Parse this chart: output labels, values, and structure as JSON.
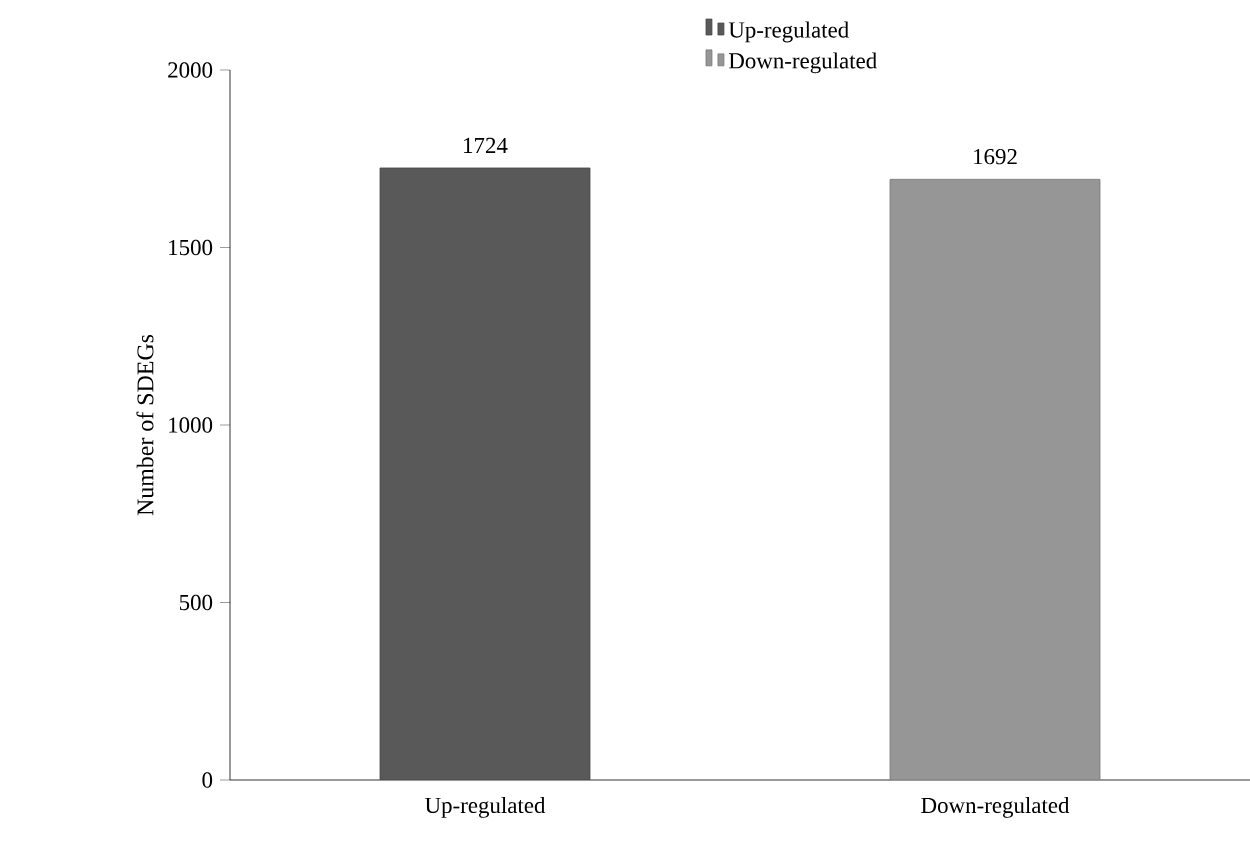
{
  "chart_data": {
    "type": "bar",
    "ylabel": "Number of SDEGs",
    "categories": [
      "Up-regulated",
      "Down-regulated"
    ],
    "series": [
      {
        "name": "Up-regulated",
        "color": "#595959",
        "values": [
          1724,
          null
        ]
      },
      {
        "name": "Down-regulated",
        "color": "#969696",
        "values": [
          null,
          1692
        ]
      }
    ],
    "ylim": [
      0,
      2000
    ],
    "yticks": [
      0,
      500,
      1000,
      1500,
      2000
    ],
    "data_labels": true,
    "grid": false,
    "legend": "top"
  }
}
